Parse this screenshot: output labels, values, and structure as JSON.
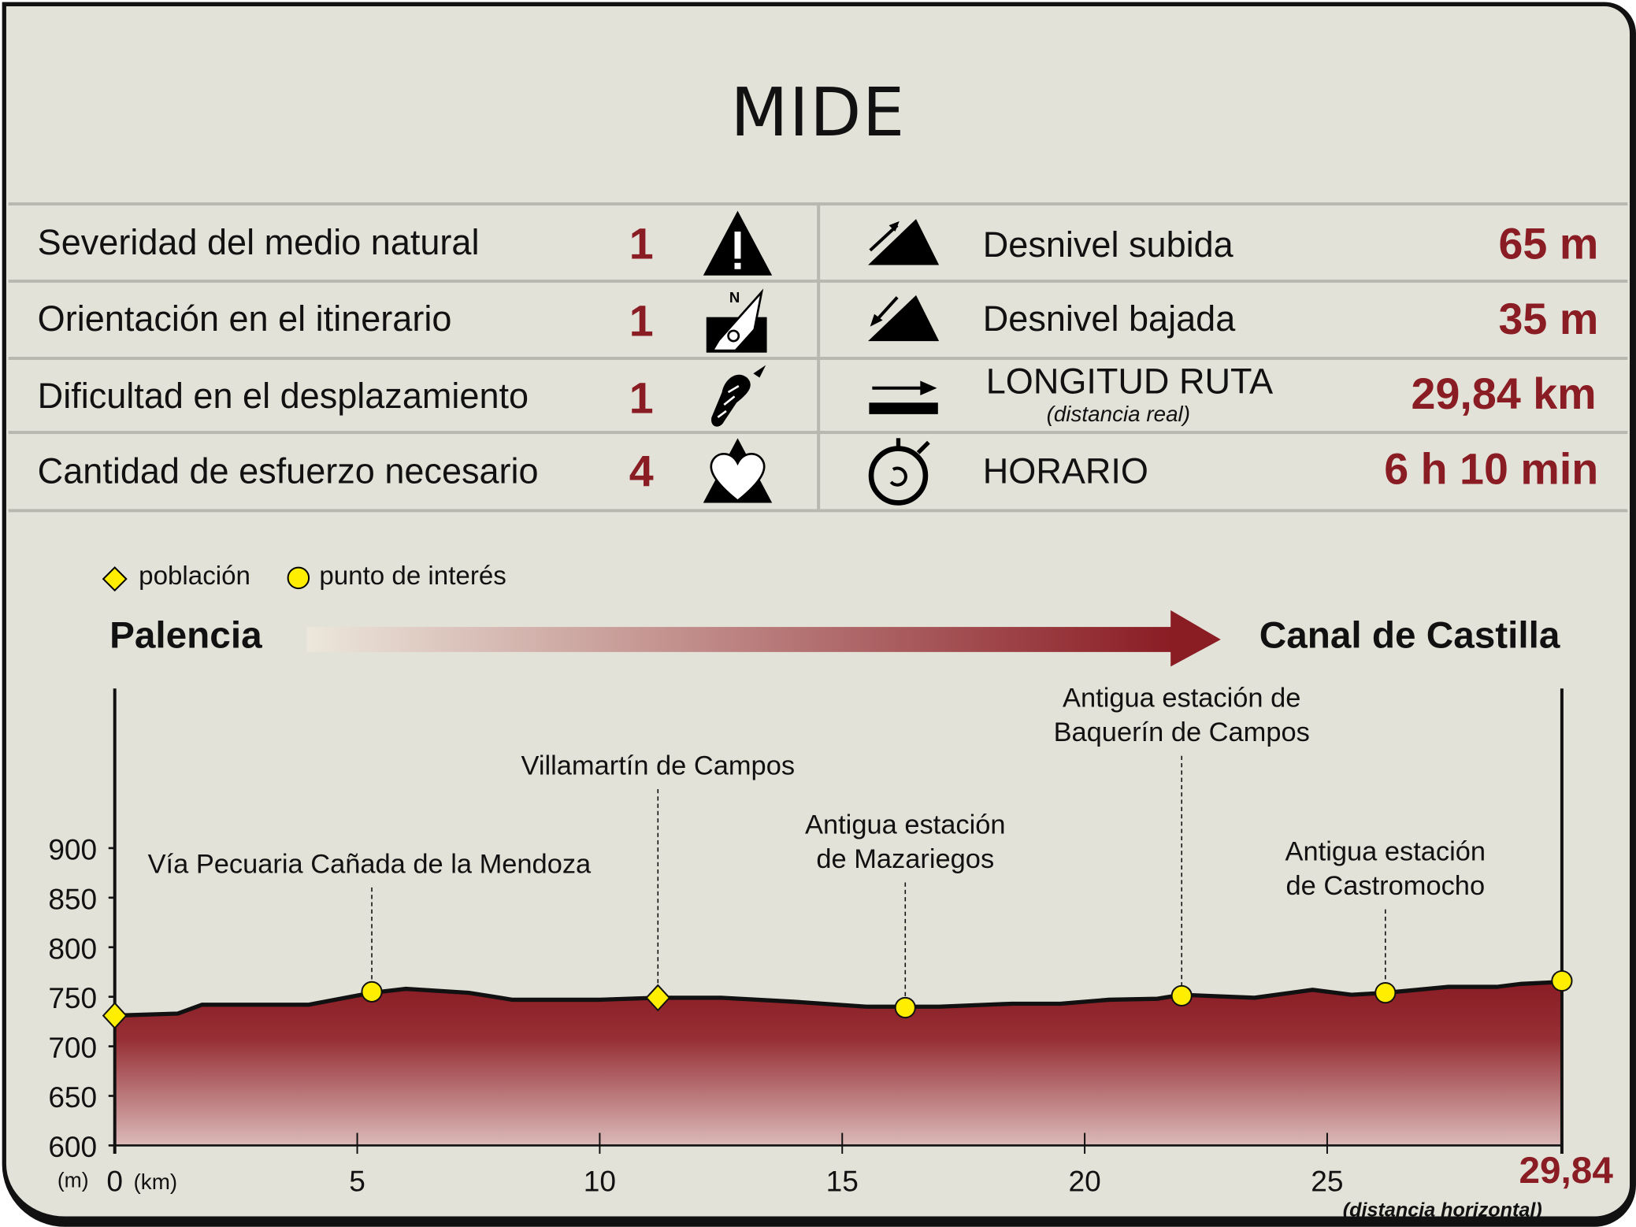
{
  "title": "MIDE",
  "mide": [
    {
      "label": "Severidad del medio natural",
      "value": "1",
      "icon": "warning-mountain-icon"
    },
    {
      "label": "Orientación en el itinerario",
      "value": "1",
      "icon": "compass-icon"
    },
    {
      "label": "Dificultad en el desplazamiento",
      "value": "1",
      "icon": "footprint-icon"
    },
    {
      "label": "Cantidad de esfuerzo necesario",
      "value": "4",
      "icon": "heart-mountain-icon"
    }
  ],
  "stats": [
    {
      "label": "Desnivel subida",
      "value": "65 m",
      "icon": "ascent-icon"
    },
    {
      "label": "Desnivel bajada",
      "value": "35 m",
      "icon": "descent-icon"
    },
    {
      "label": "LONGITUD RUTA",
      "sublabel": "(distancia real)",
      "value": "29,84 km",
      "icon": "distance-icon"
    },
    {
      "label": "HORARIO",
      "value": "6 h 10 min",
      "icon": "stopwatch-icon"
    }
  ],
  "legend": {
    "town": "población",
    "poi": "punto de interés"
  },
  "route": {
    "start": "Palencia",
    "end": "Canal de Castilla"
  },
  "colors": {
    "accent": "#8a1c24",
    "background": "#e2e2d9",
    "marker": "#ffee00"
  },
  "chart_data": {
    "type": "area",
    "ylabel": "(m)",
    "xlabel": "(km)",
    "x_end_label": "29,84",
    "x_end_note": "(distancia horizontal)",
    "ylim": [
      600,
      900
    ],
    "yticks": [
      600,
      650,
      700,
      750,
      800,
      850,
      900
    ],
    "xlim": [
      0,
      29.84
    ],
    "xticks": [
      0,
      5,
      10,
      15,
      20,
      25
    ],
    "profile": {
      "x": [
        0,
        1.3,
        1.8,
        4.0,
        5.3,
        6.0,
        7.3,
        8.2,
        10.0,
        11.2,
        12.5,
        14.0,
        15.5,
        17.0,
        18.5,
        19.5,
        20.5,
        21.5,
        22.0,
        23.5,
        24.7,
        25.5,
        26.2,
        27.5,
        28.5,
        29.0,
        29.84
      ],
      "y": [
        731,
        733,
        742,
        742,
        754,
        758,
        754,
        747,
        747,
        749,
        749,
        745,
        740,
        740,
        743,
        743,
        747,
        748,
        752,
        749,
        757,
        752,
        754,
        760,
        760,
        763,
        765
      ]
    },
    "points": [
      {
        "type": "población",
        "x": 0,
        "y": 731,
        "label": ""
      },
      {
        "type": "punto de interés",
        "x": 5.3,
        "y": 755,
        "label": [
          "Vía Pecuaria Cañada de la Mendoza"
        ]
      },
      {
        "type": "población",
        "x": 11.2,
        "y": 749,
        "label": [
          "Villamartín de Campos"
        ]
      },
      {
        "type": "punto de interés",
        "x": 16.3,
        "y": 739,
        "label": [
          "Antigua estación",
          "de Mazariegos"
        ]
      },
      {
        "type": "punto de interés",
        "x": 22.0,
        "y": 751,
        "label": [
          "Antigua estación de",
          "Baquerín de Campos"
        ]
      },
      {
        "type": "punto de interés",
        "x": 26.2,
        "y": 754,
        "label": [
          "Antigua estación",
          "de Castromocho"
        ]
      },
      {
        "type": "punto de interés",
        "x": 29.84,
        "y": 766,
        "label": ""
      }
    ]
  }
}
